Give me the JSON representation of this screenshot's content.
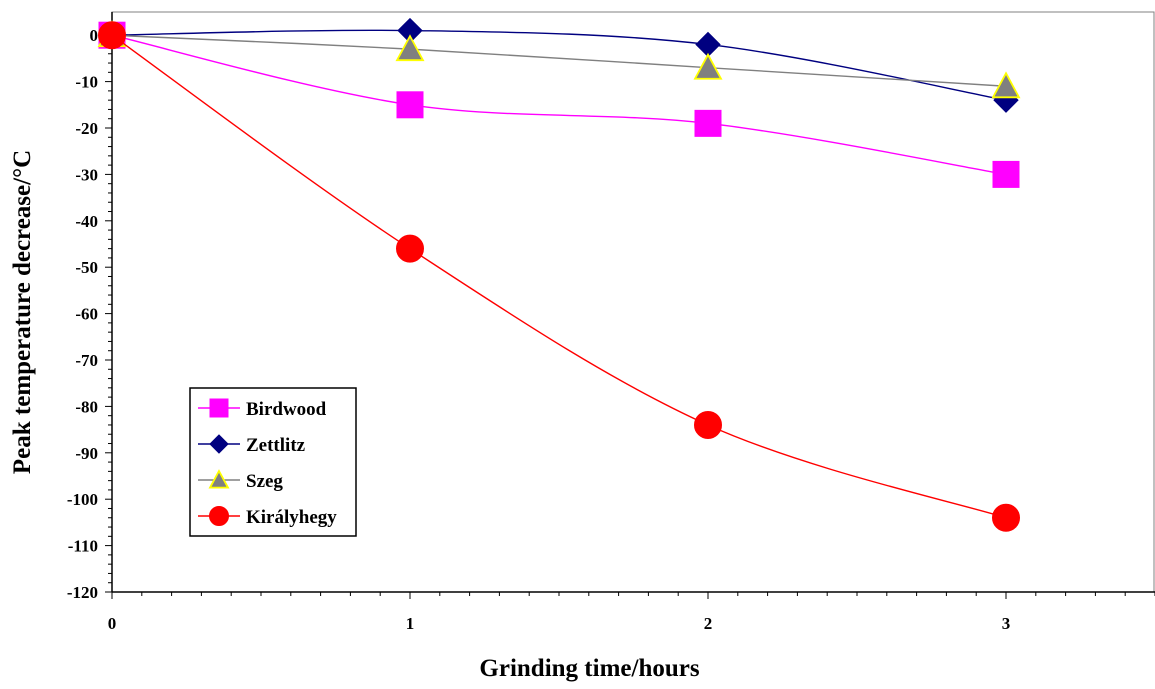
{
  "chart_data": {
    "type": "line",
    "xlabel": "Grinding time/hours",
    "ylabel": "Peak temperature decrease/°C",
    "xlim": [
      0,
      3.5
    ],
    "ylim": [
      -120,
      5
    ],
    "x_ticks": [
      0,
      1,
      2,
      3
    ],
    "y_ticks": [
      0,
      -10,
      -20,
      -30,
      -40,
      -50,
      -60,
      -70,
      -80,
      -90,
      -100,
      -110,
      -120
    ],
    "grid": false,
    "smooth": true,
    "legend_placement": "bottom-left",
    "series": [
      {
        "name": "Birdwood",
        "x": [
          0,
          1,
          2,
          3
        ],
        "y": [
          0,
          -15,
          -19,
          -30
        ],
        "color": "#FF00FF",
        "marker": "square"
      },
      {
        "name": "Zettlitz",
        "x": [
          0,
          1,
          2,
          3
        ],
        "y": [
          0,
          1,
          -2,
          -14
        ],
        "color": "#000080",
        "marker": "diamond"
      },
      {
        "name": "Szeg",
        "x": [
          0,
          1,
          2,
          3
        ],
        "y": [
          0,
          -3,
          -7,
          -11
        ],
        "color": "#808080",
        "marker": "triangle",
        "marker_edge": "#FFFF00"
      },
      {
        "name": "Királyhegy",
        "x": [
          0,
          1,
          2,
          3
        ],
        "y": [
          0,
          -46,
          -84,
          -104
        ],
        "color": "#FF0000",
        "marker": "circle"
      }
    ]
  }
}
